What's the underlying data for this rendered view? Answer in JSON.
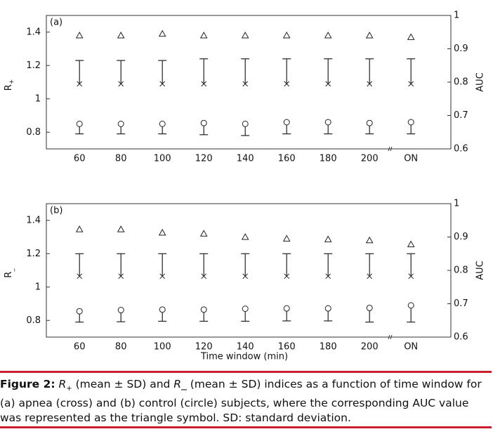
{
  "chart_data": [
    {
      "type": "errorbar",
      "panel_label": "(a)",
      "ylabel": "R",
      "ylabel_sub": "+",
      "y2label": "AUC",
      "categories": [
        "60",
        "80",
        "100",
        "120",
        "140",
        "160",
        "180",
        "200",
        "ON"
      ],
      "ylim": [
        0.7,
        1.5
      ],
      "yticks": [
        0.8,
        1,
        1.2,
        1.4
      ],
      "y2lim": [
        0.6,
        1
      ],
      "y2ticks": [
        0.6,
        0.7,
        0.8,
        0.9,
        1
      ],
      "series": [
        {
          "marker": "x",
          "color": "#222222",
          "error_dir": "up",
          "values": [
            1.09,
            1.09,
            1.09,
            1.09,
            1.09,
            1.09,
            1.09,
            1.09,
            1.09
          ],
          "errors": [
            0.14,
            0.14,
            0.14,
            0.15,
            0.15,
            0.15,
            0.15,
            0.15,
            0.15
          ]
        },
        {
          "marker": "o",
          "color": "#222222",
          "error_dir": "down",
          "values": [
            0.85,
            0.85,
            0.85,
            0.855,
            0.85,
            0.86,
            0.86,
            0.855,
            0.86
          ],
          "errors": [
            0.06,
            0.06,
            0.06,
            0.07,
            0.07,
            0.07,
            0.07,
            0.065,
            0.07
          ]
        },
        {
          "marker": "^",
          "color": "#222222",
          "axis": "y2",
          "values": [
            0.94,
            0.94,
            0.945,
            0.94,
            0.94,
            0.94,
            0.94,
            0.94,
            0.935
          ]
        }
      ]
    },
    {
      "type": "errorbar",
      "panel_label": "(b)",
      "ylabel": "R",
      "ylabel_sub": "_",
      "y2label": "AUC",
      "xlabel": "Time window (min)",
      "categories": [
        "60",
        "80",
        "100",
        "120",
        "140",
        "160",
        "180",
        "200",
        "ON"
      ],
      "ylim": [
        0.7,
        1.5
      ],
      "yticks": [
        0.8,
        1,
        1.2,
        1.4
      ],
      "y2lim": [
        0.6,
        1
      ],
      "y2ticks": [
        0.6,
        0.7,
        0.8,
        0.9,
        1
      ],
      "series": [
        {
          "marker": "x",
          "color": "#222222",
          "error_dir": "up",
          "values": [
            1.065,
            1.065,
            1.065,
            1.065,
            1.065,
            1.065,
            1.065,
            1.065,
            1.065
          ],
          "errors": [
            0.135,
            0.135,
            0.135,
            0.135,
            0.135,
            0.135,
            0.135,
            0.135,
            0.135
          ]
        },
        {
          "marker": "o",
          "color": "#222222",
          "error_dir": "down",
          "values": [
            0.855,
            0.862,
            0.865,
            0.865,
            0.87,
            0.872,
            0.872,
            0.875,
            0.89
          ],
          "errors": [
            0.065,
            0.07,
            0.07,
            0.07,
            0.075,
            0.075,
            0.075,
            0.085,
            0.1
          ]
        },
        {
          "marker": "^",
          "color": "#222222",
          "axis": "y2",
          "values": [
            0.923,
            0.923,
            0.913,
            0.91,
            0.9,
            0.895,
            0.893,
            0.89,
            0.878
          ]
        }
      ]
    }
  ],
  "caption": {
    "label": "Figure 2:",
    "parts": [
      {
        "text": "R",
        "style": "italic"
      },
      {
        "text": "+",
        "style": "sub"
      },
      {
        "text": " (mean ± SD) and ",
        "style": "normal"
      },
      {
        "text": "R_",
        "style": "italic"
      },
      {
        "text": " (mean ± SD) indices as a function of time window for (a) apnea (cross) and (b) control (circle) subjects, where the corresponding AUC value was represented as the triangle symbol. SD: standard deviation.",
        "style": "normal"
      }
    ]
  }
}
